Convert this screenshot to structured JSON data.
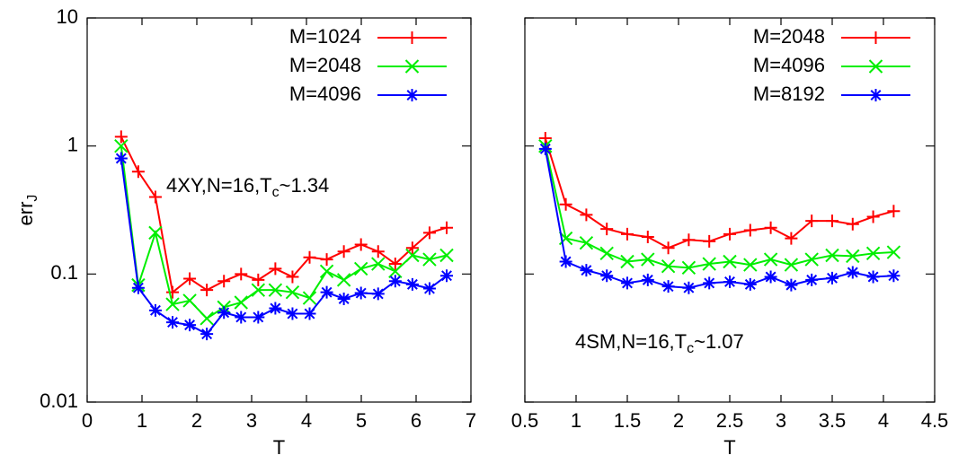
{
  "chart_data": [
    {
      "type": "line",
      "log_y": true,
      "ylabel": {
        "text": "err",
        "sub": "J"
      },
      "xlabel": "T",
      "annotation": {
        "text": "4XY,N=16,T",
        "sub": "c",
        "tail": "~1.34"
      },
      "xlim": [
        0,
        7
      ],
      "xticks": [
        0,
        1,
        2,
        3,
        4,
        5,
        6,
        7
      ],
      "ylim": [
        0.01,
        10
      ],
      "yticks": [
        0.01,
        0.1,
        1,
        10
      ],
      "legend": "top-right",
      "x": [
        0.62,
        0.9325,
        1.245,
        1.5575,
        1.87,
        2.1825,
        2.495,
        2.8075,
        3.12,
        3.4325,
        3.745,
        4.0575,
        4.37,
        4.6825,
        4.995,
        5.3075,
        5.62,
        5.9325,
        6.245,
        6.5575
      ],
      "series": [
        {
          "name": "M=1024",
          "color": "#ff0000",
          "marker": "plus",
          "values": [
            1.18,
            0.63,
            0.4,
            0.072,
            0.092,
            0.075,
            0.088,
            0.1,
            0.09,
            0.11,
            0.095,
            0.135,
            0.13,
            0.15,
            0.17,
            0.15,
            0.12,
            0.16,
            0.21,
            0.23
          ]
        },
        {
          "name": "M=2048",
          "color": "#00ee00",
          "marker": "cross",
          "values": [
            1.0,
            0.082,
            0.21,
            0.058,
            0.062,
            0.045,
            0.055,
            0.06,
            0.075,
            0.075,
            0.072,
            0.065,
            0.105,
            0.09,
            0.11,
            0.12,
            0.105,
            0.14,
            0.13,
            0.14
          ]
        },
        {
          "name": "M=4096",
          "color": "#0000ff",
          "marker": "star",
          "values": [
            0.8,
            0.078,
            0.052,
            0.042,
            0.04,
            0.034,
            0.05,
            0.046,
            0.046,
            0.054,
            0.049,
            0.049,
            0.072,
            0.064,
            0.071,
            0.07,
            0.088,
            0.083,
            0.077,
            0.097
          ]
        }
      ]
    },
    {
      "type": "line",
      "log_y": true,
      "xlabel": "T",
      "annotation": {
        "text": "4SM,N=16,T",
        "sub": "c",
        "tail": "~1.07"
      },
      "xlim": [
        0.5,
        4.5
      ],
      "xticks": [
        0.5,
        1,
        1.5,
        2,
        2.5,
        3,
        3.5,
        4,
        4.5
      ],
      "ylim": [
        0.01,
        10
      ],
      "yticks": [
        0.01,
        0.1,
        1,
        10
      ],
      "legend": "top-right",
      "x": [
        0.7,
        0.9,
        1.1,
        1.3,
        1.5,
        1.7,
        1.9,
        2.1,
        2.3,
        2.5,
        2.7,
        2.9,
        3.1,
        3.3,
        3.5,
        3.7,
        3.9,
        4.1
      ],
      "series": [
        {
          "name": "M=2048",
          "color": "#ff0000",
          "marker": "plus",
          "values": [
            1.15,
            0.35,
            0.29,
            0.225,
            0.205,
            0.195,
            0.16,
            0.185,
            0.18,
            0.205,
            0.22,
            0.23,
            0.19,
            0.26,
            0.26,
            0.245,
            0.28,
            0.31
          ]
        },
        {
          "name": "M=4096",
          "color": "#00ee00",
          "marker": "cross",
          "values": [
            1.0,
            0.19,
            0.175,
            0.145,
            0.125,
            0.13,
            0.115,
            0.112,
            0.12,
            0.125,
            0.118,
            0.13,
            0.118,
            0.13,
            0.14,
            0.138,
            0.145,
            0.148
          ]
        },
        {
          "name": "M=8192",
          "color": "#0000ff",
          "marker": "star",
          "values": [
            0.95,
            0.125,
            0.107,
            0.097,
            0.085,
            0.09,
            0.08,
            0.078,
            0.085,
            0.087,
            0.083,
            0.095,
            0.082,
            0.09,
            0.093,
            0.103,
            0.095,
            0.097
          ]
        }
      ]
    }
  ]
}
